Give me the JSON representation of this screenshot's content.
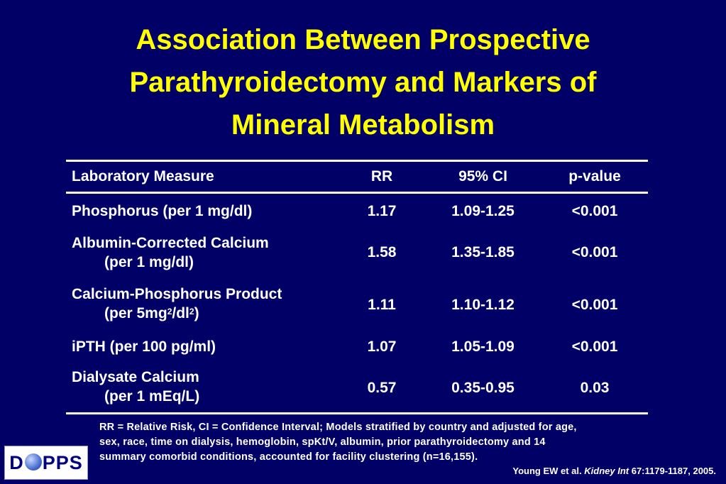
{
  "title": {
    "line1": "Association Between Prospective",
    "line2": "Parathyroidectomy and Markers of",
    "line3": "Mineral Metabolism"
  },
  "table": {
    "headers": {
      "measure": "Laboratory Measure",
      "rr": "RR",
      "ci": "95% CI",
      "p": "p-value"
    },
    "rows": [
      {
        "measure": "Phosphorus (per 1 mg/dl)",
        "rr": "1.17",
        "ci": "1.09-1.25",
        "p": "<0.001"
      },
      {
        "measure": "Albumin-Corrected Calcium",
        "measure_sub": "(per 1 mg/dl)",
        "rr": "1.58",
        "ci": "1.35-1.85",
        "p": "<0.001"
      },
      {
        "measure": "Calcium-Phosphorus Product",
        "measure_sub_a": "(per 5mg",
        "measure_sub_sup1": "2",
        "measure_sub_b": "/dl",
        "measure_sub_sup2": "2",
        "measure_sub_c": ")",
        "rr": "1.11",
        "ci": "1.10-1.12",
        "p": "<0.001"
      },
      {
        "measure": "iPTH (per 100 pg/ml)",
        "rr": "1.07",
        "ci": "1.05-1.09",
        "p": "<0.001"
      },
      {
        "measure": "Dialysate Calcium",
        "measure_sub": "(per 1 mEq/L)",
        "rr": "0.57",
        "ci": "0.35-0.95",
        "p": "0.03"
      }
    ]
  },
  "footnote": {
    "line1": "RR = Relative Risk, CI = Confidence Interval; Models stratified by country and adjusted for age,",
    "line2": "sex, race, time on dialysis, hemoglobin, spKt/V, albumin, prior parathyroidectomy and 14",
    "line3": "summary comorbid conditions, accounted for facility clustering (n=16,155)."
  },
  "citation": {
    "authors": "Young EW et al.",
    "journal": "Kidney Int",
    "ref": "67:1179-1187, 2005."
  },
  "logo": {
    "prefix": "D",
    "suffix": "PPS",
    "icon": "globe-icon"
  },
  "colors": {
    "background": "#000066",
    "title": "#ffff00",
    "text": "#ffffff"
  }
}
